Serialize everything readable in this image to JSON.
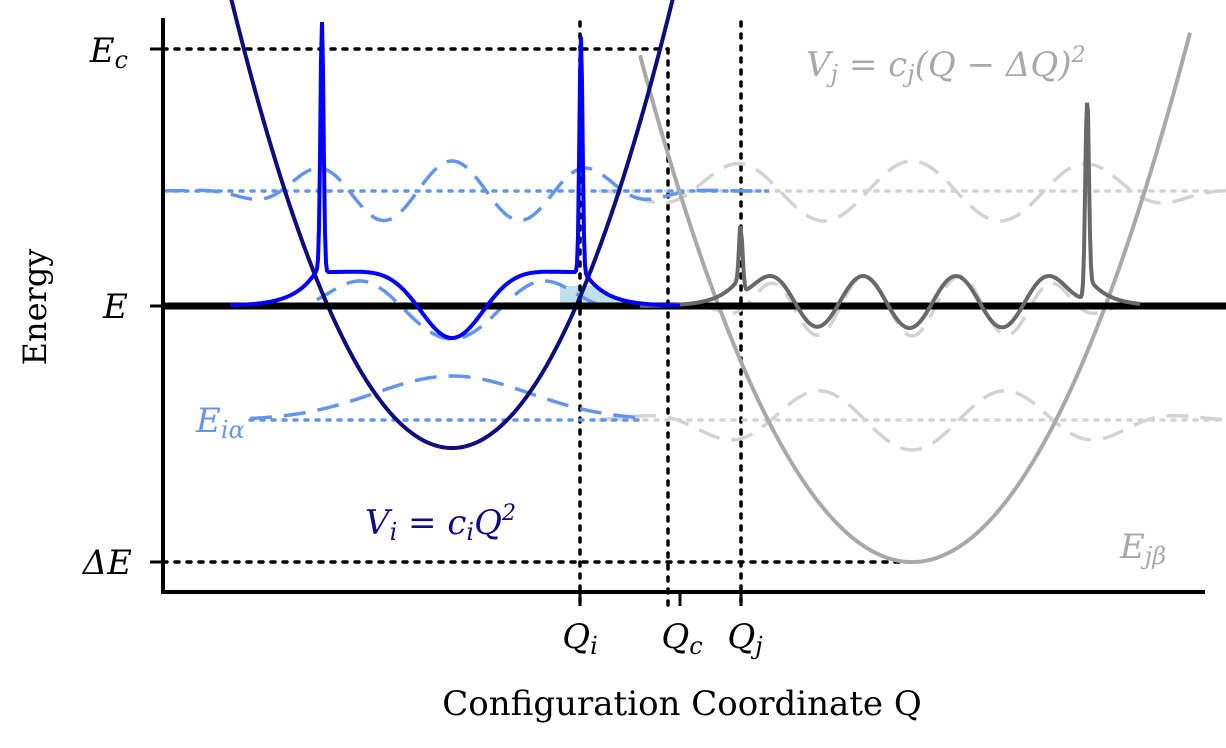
{
  "axes": {
    "ylabel": "Energy",
    "xlabel": "Configuration Coordinate Q",
    "y_ticks": [
      {
        "id": "Ec",
        "main": "E",
        "sub": "c"
      },
      {
        "id": "E",
        "main": "E",
        "sub": ""
      },
      {
        "id": "dE",
        "main": "ΔE",
        "sub": ""
      }
    ],
    "x_ticks": [
      {
        "id": "Qi",
        "main": "Q",
        "sub": "i"
      },
      {
        "id": "Qc",
        "main": "Q",
        "sub": "c"
      },
      {
        "id": "Qj",
        "main": "Q",
        "sub": "j"
      }
    ]
  },
  "labels": {
    "Vi": {
      "main": "V",
      "sub": "i",
      "rest": " = c",
      "sub2": "i",
      "tail": "Q",
      "sup": "2"
    },
    "Vj": {
      "main": "V",
      "sub": "j",
      "rest": " = c",
      "sub2": "j",
      "tail": "(Q − ΔQ)",
      "sup": "2"
    },
    "Eia": {
      "main": "E",
      "sub": "iα"
    },
    "Ejb": {
      "main": "E",
      "sub": "jβ"
    }
  },
  "colors": {
    "axis": "#000000",
    "potential_i": "#0d0d80",
    "potential_j": "#a9a9a9",
    "wave_i": "#6495ed",
    "wave_j": "#d3d3d3",
    "density_i": "#0000ff",
    "density_j": "#696969",
    "fill_overlap": "#add8e6"
  }
}
